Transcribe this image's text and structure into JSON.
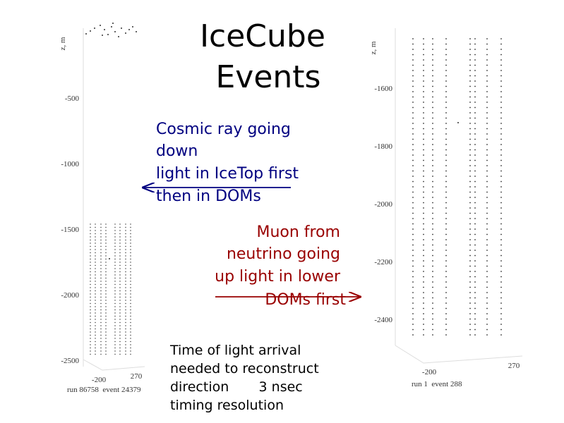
{
  "title": [
    "IceCube",
    "Events"
  ],
  "cosmic_ray": [
    "Cosmic ray going",
    "down",
    "light in IceTop first",
    "then in DOMs"
  ],
  "muon": [
    "Muon from",
    "neutrino going",
    "up light in lower",
    "DOMs first"
  ],
  "timing": [
    "Time of light arrival",
    "needed to reconstruct",
    "direction       3 nsec",
    "timing resolution"
  ],
  "left_plot": {
    "z_label": "z, m",
    "z_ticks": [
      "-500",
      "-1000",
      "-1500",
      "-2000",
      "-2500"
    ],
    "x_ticks": [
      "-200",
      "270"
    ],
    "caption": "run 86758  event 24379"
  },
  "right_plot": {
    "z_label": "z, m",
    "z_ticks": [
      "-1600",
      "-1800",
      "-2000",
      "-2200",
      "-2400"
    ],
    "x_ticks": [
      "-200",
      "270"
    ],
    "caption": "run 1  event 288"
  }
}
